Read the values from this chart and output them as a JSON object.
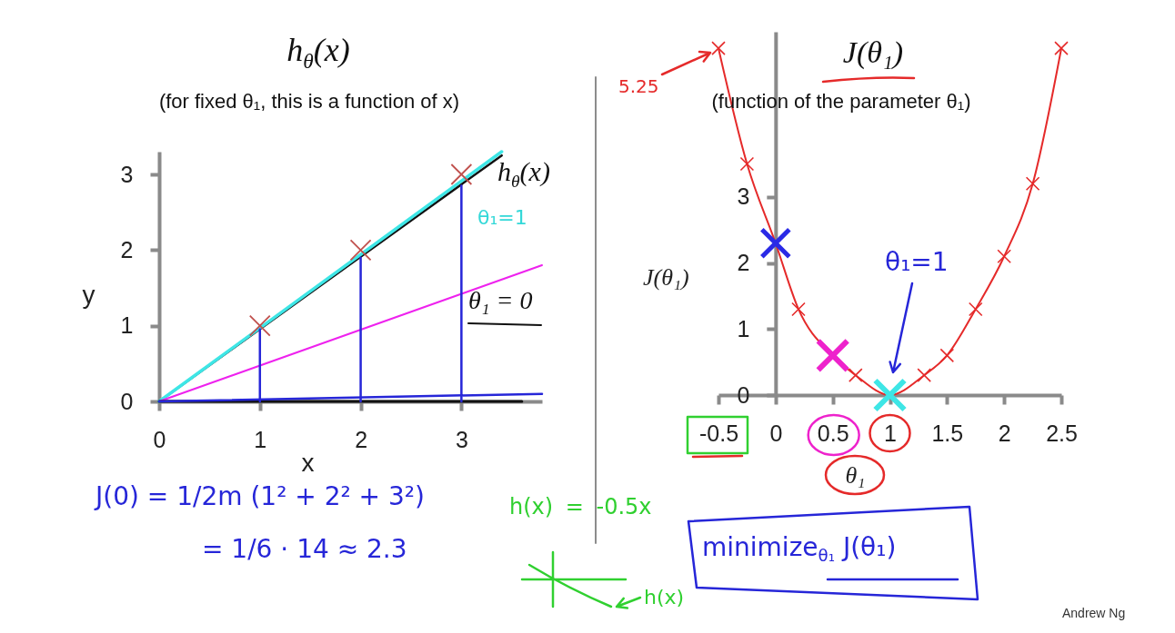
{
  "chart_data": [
    {
      "type": "line",
      "title": "h$_{θ}$(x)",
      "subtitle": "(for fixed θ₁, this is a function of x)",
      "xlabel": "x",
      "ylabel": "y",
      "xlim": [
        0,
        3.8
      ],
      "ylim": [
        0,
        3.3
      ],
      "xticks": [
        0,
        1,
        2,
        3
      ],
      "yticks": [
        0,
        1,
        2,
        3
      ],
      "series": [
        {
          "color": "#111111",
          "x": [
            0,
            3.4
          ],
          "values": [
            0,
            3.25
          ]
        },
        {
          "color": "#3ee6e6",
          "x": [
            0,
            3.4
          ],
          "values": [
            0,
            3.3
          ]
        },
        {
          "color": "#ee22ee",
          "x": [
            0,
            3.8
          ],
          "values": [
            0,
            1.8
          ]
        },
        {
          "color": "#111111",
          "x": [
            0,
            3.6
          ],
          "values": [
            0,
            0
          ]
        },
        {
          "color": "#2626d8",
          "x": [
            0,
            3.8
          ],
          "values": [
            0,
            0.1
          ]
        },
        {
          "color": "#2626d8",
          "x": [
            1,
            1
          ],
          "values": [
            0,
            0.95
          ]
        },
        {
          "color": "#2626d8",
          "x": [
            2,
            2
          ],
          "values": [
            0,
            1.9
          ]
        },
        {
          "color": "#2626d8",
          "x": [
            3,
            3
          ],
          "values": [
            0,
            2.85
          ]
        },
        {
          "type": "scatter",
          "color": "#c0504d",
          "marker": "cross",
          "x": [
            1,
            2,
            3
          ],
          "values": [
            1,
            2,
            3
          ]
        }
      ],
      "annotations": [
        "h$_{θ}$(x)",
        "θ₁=1",
        "θ₁ = 0",
        "J(0) = 1/2m (1² + 2² + 3²)",
        "= 1/6 · 14 ≈ 2.3"
      ]
    },
    {
      "type": "line",
      "title": "J(θ₁)",
      "subtitle": "(function of the parameter θ₁)",
      "xlabel": "θ₁",
      "ylabel": "J(θ₁)",
      "xlim": [
        -0.5,
        2.5
      ],
      "ylim": [
        0,
        5.5
      ],
      "xticks": [
        -0.5,
        0,
        0.5,
        1,
        1.5,
        2,
        2.5
      ],
      "yticks": [
        0,
        1,
        2,
        3
      ],
      "series": [
        {
          "color": "#e52a2a",
          "x": [
            -0.5,
            -0.25,
            0,
            0.2,
            0.5,
            0.7,
            1,
            1.3,
            1.5,
            1.75,
            2,
            2.25,
            2.5
          ],
          "values": [
            5.25,
            3.5,
            2.3,
            1.3,
            0.6,
            0.3,
            0,
            0.3,
            0.6,
            1.3,
            2.1,
            3.2,
            5.25
          ]
        },
        {
          "type": "scatter",
          "color": "#e52a2a",
          "marker": "cross",
          "x": [
            -0.5,
            -0.25,
            0.2,
            0.7,
            1.3,
            1.5,
            1.75,
            2,
            2.25,
            2.5
          ],
          "values": [
            5.25,
            3.5,
            1.3,
            0.3,
            0.3,
            0.6,
            1.3,
            2.1,
            3.2,
            5.25
          ]
        },
        {
          "type": "scatter",
          "color": "#2a2ae6",
          "marker": "cross",
          "x": [
            0
          ],
          "values": [
            2.3
          ]
        },
        {
          "type": "scatter",
          "color": "#ee22cc",
          "marker": "cross",
          "x": [
            0.5
          ],
          "values": [
            0.6
          ]
        },
        {
          "type": "scatter",
          "color": "#3ee6e6",
          "marker": "cross",
          "x": [
            1
          ],
          "values": [
            0
          ]
        }
      ],
      "annotations": [
        "5.25",
        "θ₁=1",
        "h(x) = -0.5x",
        "h(x)",
        "minimize$_{θ₁}$ J(θ₁)",
        "Andrew Ng"
      ]
    }
  ]
}
